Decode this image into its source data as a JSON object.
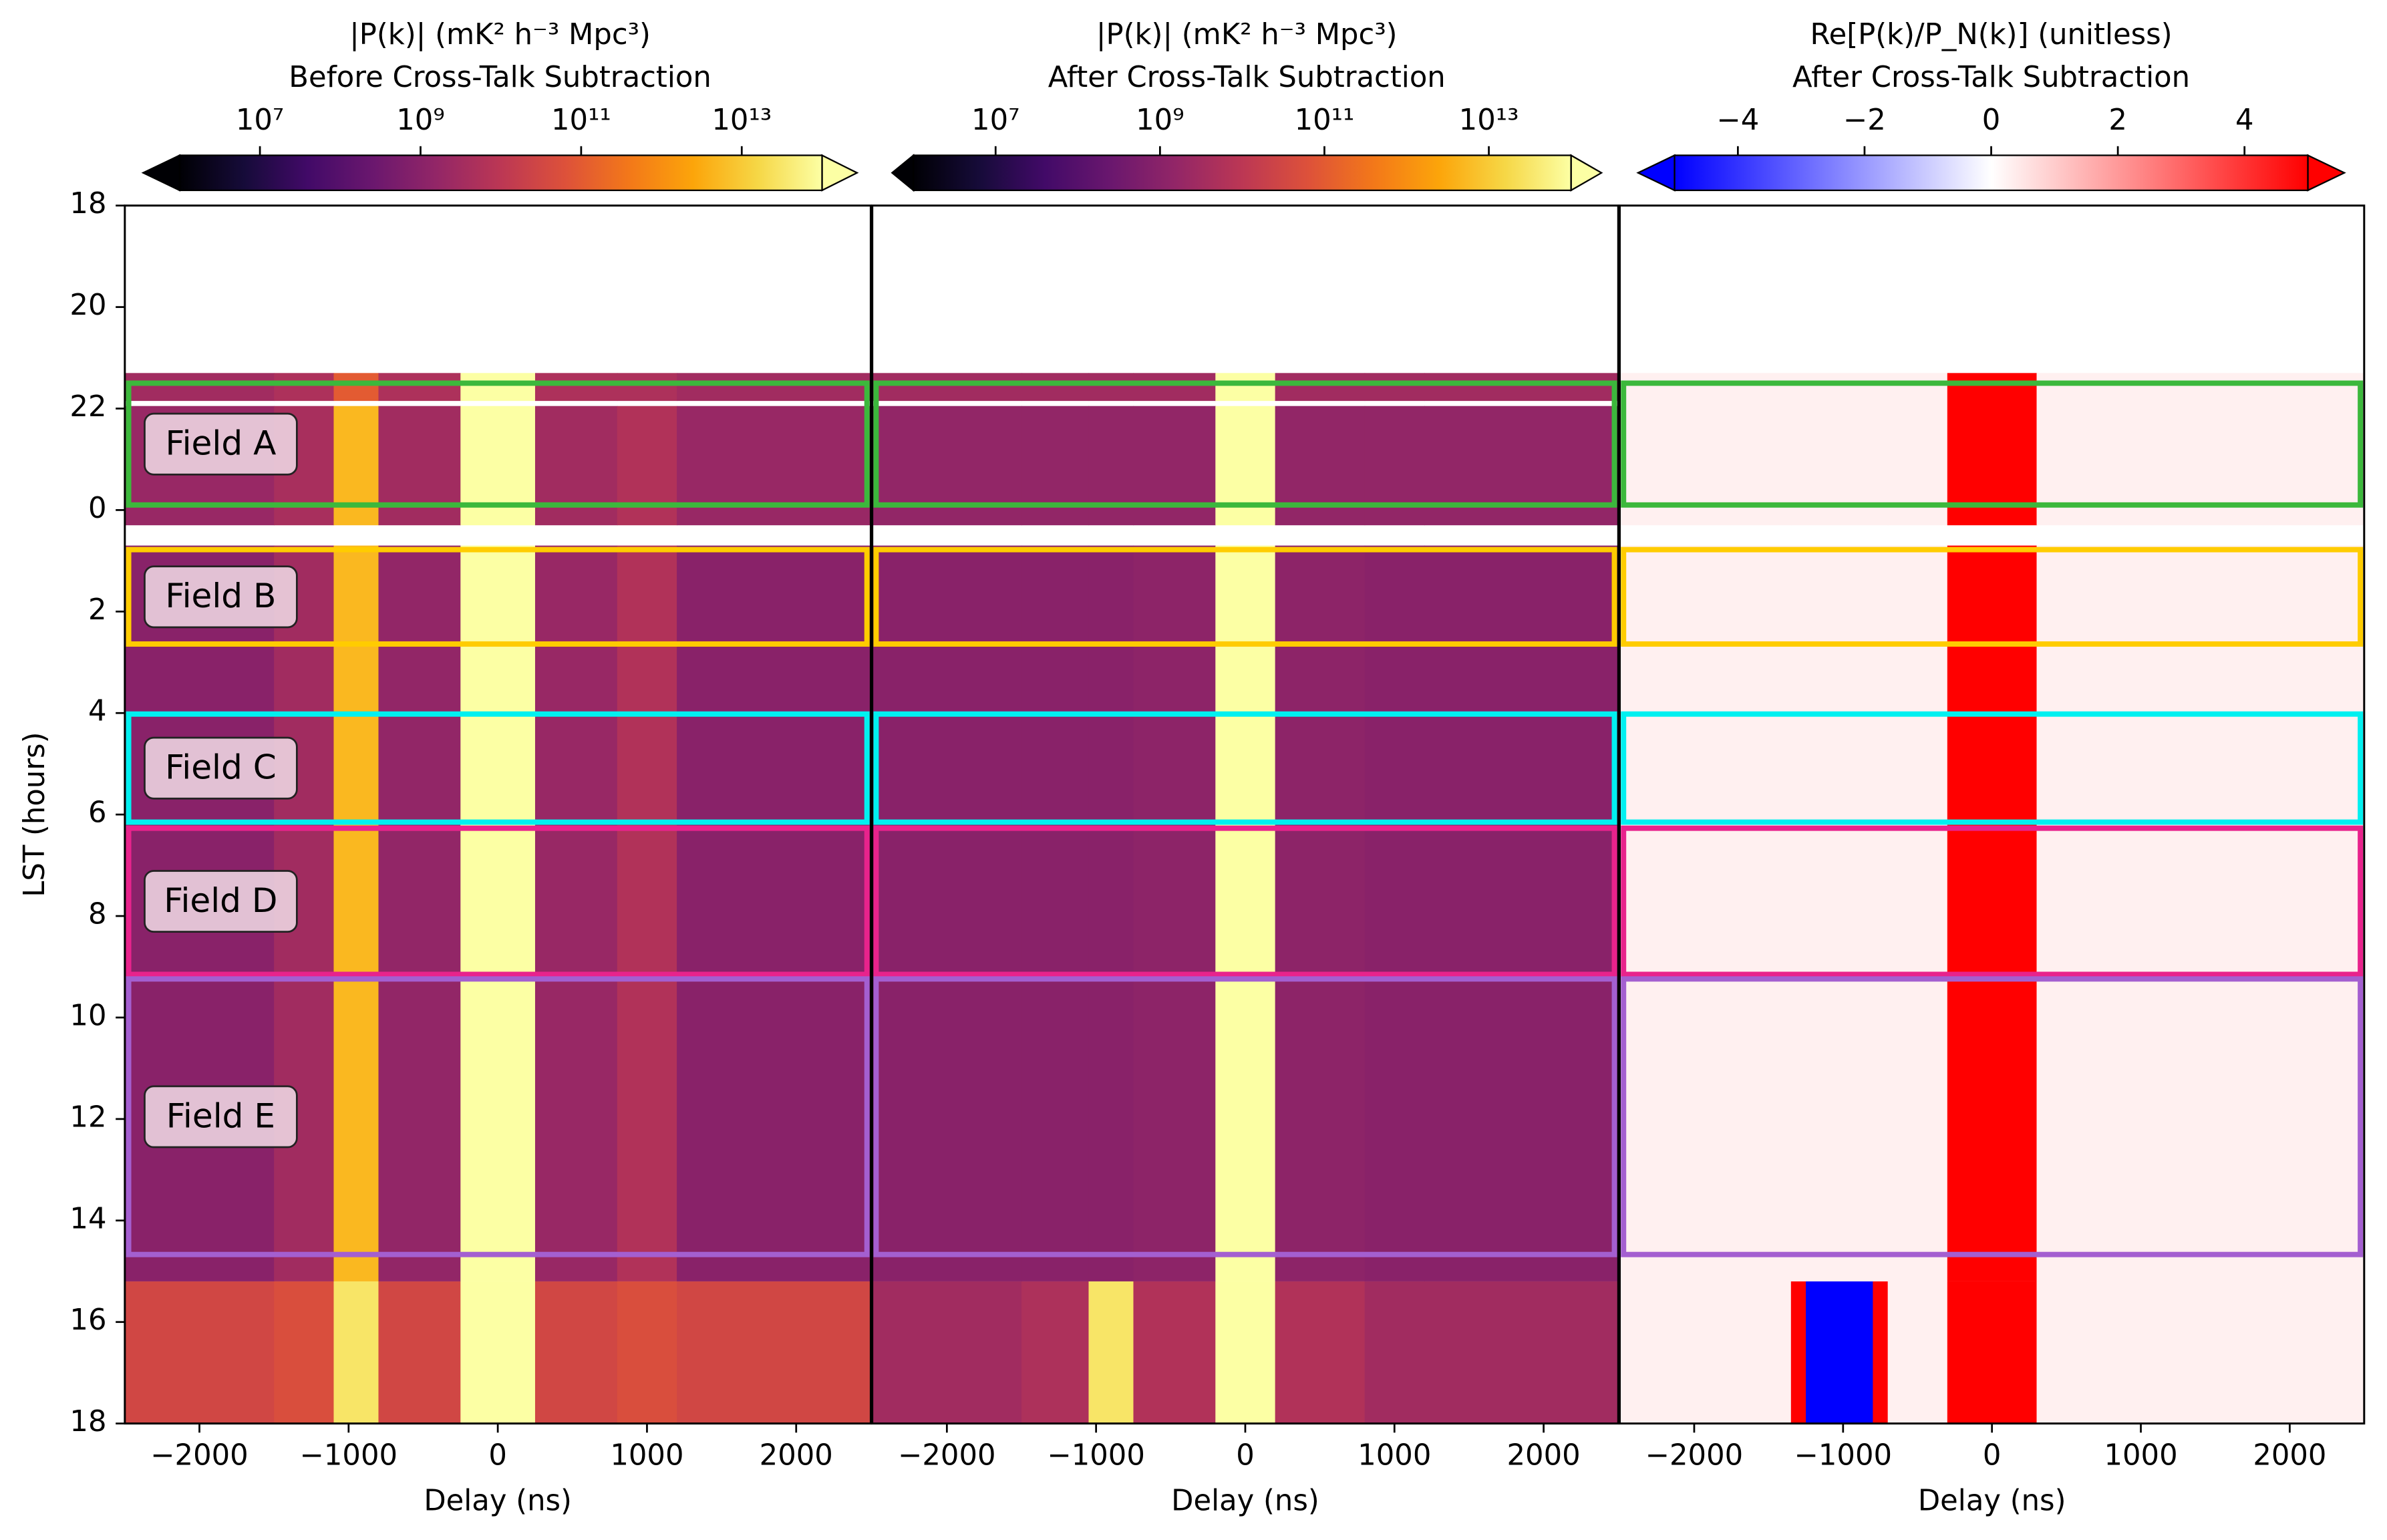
{
  "chart_data": [
    {
      "type": "heatmap",
      "title": "|P(k)| (mK² h⁻³ Mpc³)",
      "subtitle": "Before Cross-Talk Subtraction",
      "xlabel": "Delay (ns)",
      "ylabel": "LST (hours)",
      "xlim": [
        -2500,
        2500
      ],
      "xticks": [
        {
          "value": -2000,
          "label": "−2000"
        },
        {
          "value": -1000,
          "label": "−1000"
        },
        0,
        1000,
        2000
      ],
      "ylim": [
        18,
        42
      ],
      "yticks": [
        18,
        20,
        22,
        {
          "value": 24,
          "label": "0"
        },
        {
          "value": 26,
          "label": "2"
        },
        {
          "value": 28,
          "label": "4"
        },
        {
          "value": 30,
          "label": "6"
        },
        {
          "value": 32,
          "label": "8"
        },
        {
          "value": 34,
          "label": "10"
        },
        {
          "value": 36,
          "label": "12"
        },
        {
          "value": 38,
          "label": "14"
        },
        {
          "value": 40,
          "label": "16"
        },
        {
          "value": 42,
          "label": "18"
        }
      ],
      "colormap": "inferno",
      "log_scale": true,
      "clim": [
        1000000.0,
        100000000000000.0
      ],
      "cticks": [
        {
          "value": 10000000.0,
          "label": "10⁷"
        },
        {
          "value": 1000000000.0,
          "label": "10⁹"
        },
        {
          "value": 100000000000.0,
          "label": "10¹¹"
        },
        {
          "value": 10000000000000.0,
          "label": "10¹³"
        }
      ],
      "x_edges": [
        -2500,
        -1500,
        -1100,
        -800,
        -250,
        250,
        800,
        1200,
        2500
      ],
      "rows": [
        {
          "lst": [
            21.3,
            21.85
          ],
          "values": [
            3000000000.0,
            5000000000.0,
            100000000000.0,
            5000000000.0,
            100000000000000.0,
            5000000000.0,
            5000000000.0,
            3000000000.0
          ]
        },
        {
          "lst": [
            21.95,
            24.3
          ],
          "values": [
            2000000000.0,
            4000000000.0,
            5000000000000.0,
            3000000000.0,
            100000000000000.0,
            3000000000.0,
            6000000000.0,
            2000000000.0
          ]
        },
        {
          "lst": [
            24.7,
            39.2
          ],
          "values": [
            1000000000.0,
            3000000000.0,
            5000000000000.0,
            1500000000.0,
            100000000000000.0,
            2000000000.0,
            6000000000.0,
            1000000000.0
          ]
        },
        {
          "lst": [
            39.2,
            42
          ],
          "values": [
            30000000000.0,
            50000000000.0,
            30000000000000.0,
            30000000000.0,
            100000000000000.0,
            30000000000.0,
            50000000000.0,
            30000000000.0
          ]
        }
      ]
    },
    {
      "type": "heatmap",
      "title": "|P(k)| (mK² h⁻³ Mpc³)",
      "subtitle": "After Cross-Talk Subtraction",
      "xlabel": "Delay (ns)",
      "xlim": [
        -2500,
        2500
      ],
      "xticks": [
        {
          "value": -2000,
          "label": "−2000"
        },
        {
          "value": -1000,
          "label": "−1000"
        },
        0,
        1000,
        2000
      ],
      "ylim": [
        18,
        42
      ],
      "colormap": "inferno",
      "log_scale": true,
      "clim": [
        1000000.0,
        100000000000000.0
      ],
      "cticks": [
        {
          "value": 10000000.0,
          "label": "10⁷"
        },
        {
          "value": 1000000000.0,
          "label": "10⁹"
        },
        {
          "value": 100000000000.0,
          "label": "10¹¹"
        },
        {
          "value": 10000000000000.0,
          "label": "10¹³"
        }
      ],
      "x_edges": [
        -2500,
        -1500,
        -1050,
        -750,
        -200,
        200,
        800,
        1200,
        2500
      ],
      "rows": [
        {
          "lst": [
            21.3,
            21.85
          ],
          "values": [
            3000000000.0,
            3000000000.0,
            3000000000.0,
            3000000000.0,
            100000000000000.0,
            3000000000.0,
            3000000000.0,
            3000000000.0
          ]
        },
        {
          "lst": [
            21.95,
            24.3
          ],
          "values": [
            1500000000.0,
            1500000000.0,
            1500000000.0,
            1500000000.0,
            100000000000000.0,
            1500000000.0,
            1500000000.0,
            1500000000.0
          ]
        },
        {
          "lst": [
            24.7,
            39.2
          ],
          "values": [
            1000000000.0,
            1000000000.0,
            1000000000.0,
            1200000000.0,
            100000000000000.0,
            1200000000.0,
            1000000000.0,
            1000000000.0
          ]
        },
        {
          "lst": [
            39.2,
            42
          ],
          "values": [
            3000000000.0,
            5000000000.0,
            30000000000000.0,
            6000000000.0,
            100000000000000.0,
            6000000000.0,
            3000000000.0,
            3000000000.0
          ]
        }
      ]
    },
    {
      "type": "heatmap",
      "title": "Re[P(k)/P_N(k)] (unitless)",
      "subtitle": "After Cross-Talk Subtraction",
      "xlabel": "Delay (ns)",
      "xlim": [
        -2500,
        2500
      ],
      "xticks": [
        {
          "value": -2000,
          "label": "−2000"
        },
        {
          "value": -1000,
          "label": "−1000"
        },
        0,
        1000,
        2000
      ],
      "ylim": [
        18,
        42
      ],
      "colormap": "bwr",
      "log_scale": false,
      "clim": [
        -5,
        5
      ],
      "cticks": [
        {
          "value": -4,
          "label": "−4"
        },
        {
          "value": -2,
          "label": "−2"
        },
        0,
        2,
        4
      ],
      "x_edges": [
        -2500,
        -1350,
        -1250,
        -800,
        -700,
        -300,
        300,
        2500
      ],
      "rows": [
        {
          "lst": [
            21.3,
            24.3
          ],
          "values": [
            0.3,
            0.3,
            0.3,
            0.3,
            0.3,
            5,
            0.3
          ]
        },
        {
          "lst": [
            24.7,
            39.2
          ],
          "values": [
            0.3,
            0.3,
            0.3,
            0.3,
            0.3,
            5,
            0.3
          ]
        },
        {
          "lst": [
            39.2,
            42
          ],
          "values": [
            0.3,
            5,
            -5,
            5,
            0.3,
            5,
            0.3
          ]
        }
      ]
    }
  ],
  "fields": [
    {
      "label": "Field A",
      "lst": [
        21.5,
        23.9
      ],
      "color": "#3cb83c"
    },
    {
      "label": "Field B",
      "lst": [
        24.78,
        26.64
      ],
      "color": "#ffcc00"
    },
    {
      "label": "Field C",
      "lst": [
        28.02,
        30.15
      ],
      "color": "#00f0f0"
    },
    {
      "label": "Field D",
      "lst": [
        30.27,
        33.15
      ],
      "color": "#e8238c"
    },
    {
      "label": "Field E",
      "lst": [
        33.24,
        38.67
      ],
      "color": "#a45fd0"
    }
  ]
}
